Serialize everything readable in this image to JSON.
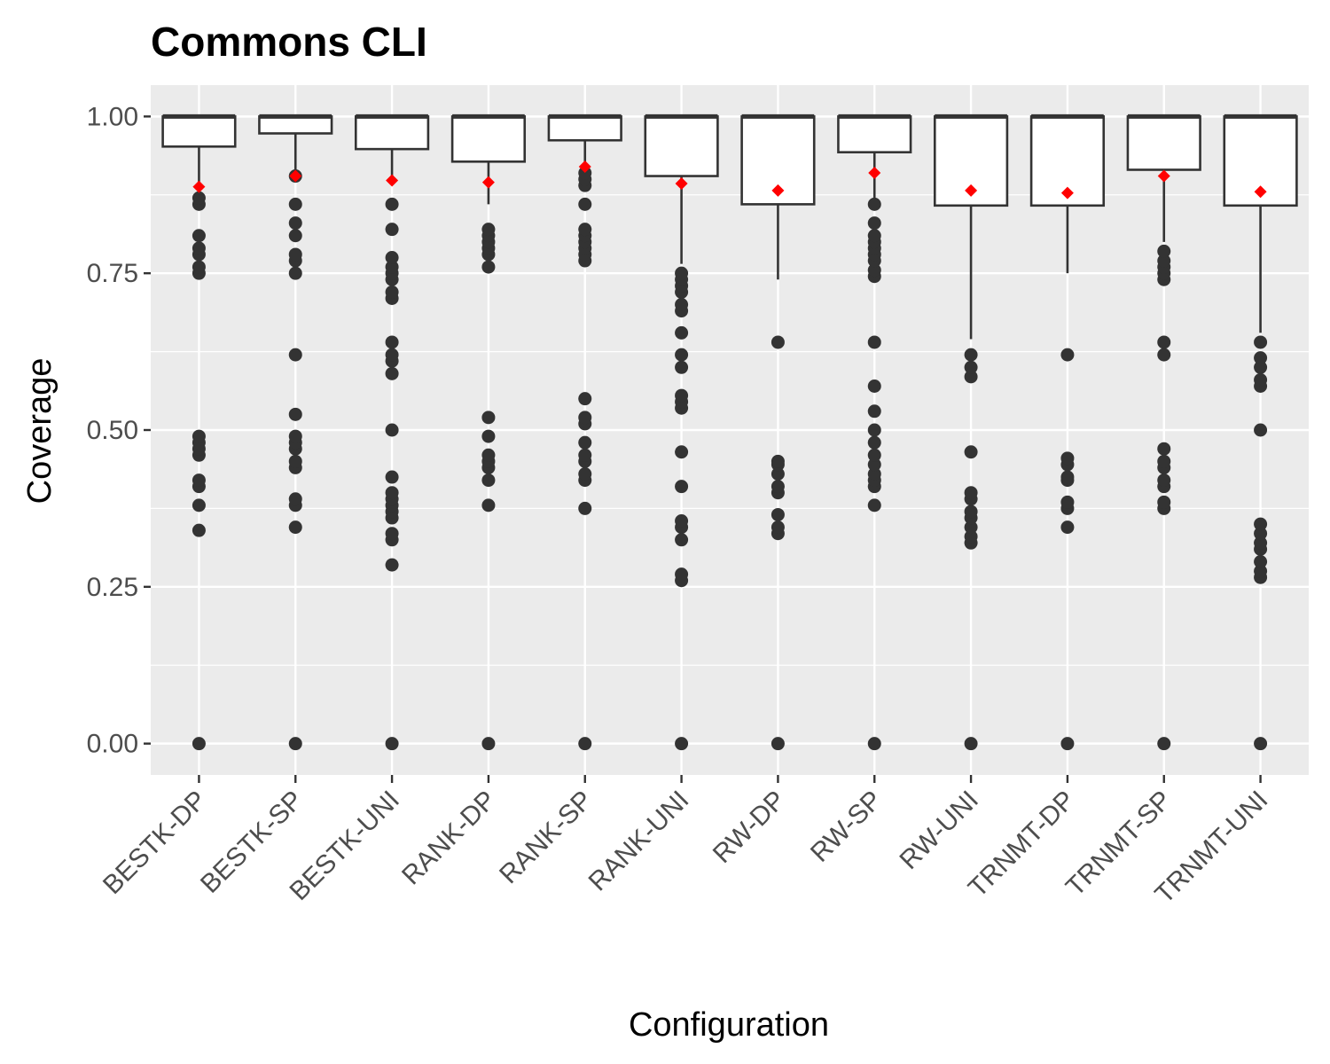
{
  "chart_data": {
    "type": "boxplot",
    "title": "Commons CLI",
    "xlabel": "Configuration",
    "ylabel": "Coverage",
    "ylim": [
      -0.05,
      1.05
    ],
    "yticks": [
      "0.00",
      "0.25",
      "0.50",
      "0.75",
      "1.00"
    ],
    "ytick_values": [
      0,
      0.25,
      0.5,
      0.75,
      1.0
    ],
    "grid": true,
    "legend": "none",
    "colors": {
      "panel": "#ebebeb",
      "grid": "#ffffff",
      "box": "#333333",
      "mean": "#ff0000",
      "tick_text": "#4d4d4d"
    },
    "categories": [
      "BESTK-DP",
      "BESTK-SP",
      "BESTK-UNI",
      "RANK-DP",
      "RANK-SP",
      "RANK-UNI",
      "RW-DP",
      "RW-SP",
      "RW-UNI",
      "TRNMT-DP",
      "TRNMT-SP",
      "TRNMT-UNI"
    ],
    "boxes": [
      {
        "q1": 0.952,
        "median": 1.0,
        "q3": 1.0,
        "whisker_low": 0.888,
        "whisker_high": 1.0,
        "mean": 0.888,
        "outliers": [
          0.0,
          0.34,
          0.38,
          0.41,
          0.42,
          0.46,
          0.47,
          0.48,
          0.49,
          0.75,
          0.76,
          0.78,
          0.79,
          0.81,
          0.86,
          0.87
        ]
      },
      {
        "q1": 0.973,
        "median": 1.0,
        "q3": 1.0,
        "whisker_low": 0.905,
        "whisker_high": 1.0,
        "mean": 0.905,
        "outliers": [
          0.0,
          0.345,
          0.38,
          0.39,
          0.44,
          0.45,
          0.47,
          0.48,
          0.49,
          0.525,
          0.62,
          0.75,
          0.77,
          0.78,
          0.81,
          0.83,
          0.86,
          0.905
        ]
      },
      {
        "q1": 0.948,
        "median": 1.0,
        "q3": 1.0,
        "whisker_low": 0.898,
        "whisker_high": 1.0,
        "mean": 0.898,
        "outliers": [
          0.0,
          0.285,
          0.325,
          0.335,
          0.36,
          0.37,
          0.38,
          0.39,
          0.4,
          0.425,
          0.5,
          0.59,
          0.61,
          0.62,
          0.64,
          0.71,
          0.72,
          0.74,
          0.75,
          0.76,
          0.775,
          0.82,
          0.86
        ]
      },
      {
        "q1": 0.928,
        "median": 1.0,
        "q3": 1.0,
        "whisker_low": 0.86,
        "whisker_high": 1.0,
        "mean": 0.895,
        "outliers": [
          0.0,
          0.38,
          0.42,
          0.44,
          0.45,
          0.46,
          0.49,
          0.52,
          0.76,
          0.78,
          0.79,
          0.8,
          0.81,
          0.82
        ]
      },
      {
        "q1": 0.962,
        "median": 1.0,
        "q3": 1.0,
        "whisker_low": 0.91,
        "whisker_high": 1.0,
        "mean": 0.92,
        "outliers": [
          0.0,
          0.375,
          0.42,
          0.43,
          0.45,
          0.46,
          0.48,
          0.51,
          0.52,
          0.55,
          0.77,
          0.78,
          0.79,
          0.8,
          0.81,
          0.82,
          0.86,
          0.89,
          0.9,
          0.91
        ]
      },
      {
        "q1": 0.905,
        "median": 1.0,
        "q3": 1.0,
        "whisker_low": 0.765,
        "whisker_high": 1.0,
        "mean": 0.893,
        "outliers": [
          0.0,
          0.26,
          0.27,
          0.325,
          0.345,
          0.355,
          0.41,
          0.465,
          0.535,
          0.545,
          0.555,
          0.6,
          0.62,
          0.655,
          0.69,
          0.7,
          0.72,
          0.73,
          0.74,
          0.75
        ]
      },
      {
        "q1": 0.86,
        "median": 1.0,
        "q3": 1.0,
        "whisker_low": 0.74,
        "whisker_high": 1.0,
        "mean": 0.882,
        "outliers": [
          0.0,
          0.335,
          0.345,
          0.365,
          0.4,
          0.41,
          0.43,
          0.445,
          0.45,
          0.64
        ]
      },
      {
        "q1": 0.943,
        "median": 1.0,
        "q3": 1.0,
        "whisker_low": 0.86,
        "whisker_high": 1.0,
        "mean": 0.91,
        "outliers": [
          0.0,
          0.38,
          0.41,
          0.42,
          0.43,
          0.445,
          0.46,
          0.48,
          0.5,
          0.53,
          0.57,
          0.64,
          0.745,
          0.755,
          0.77,
          0.78,
          0.79,
          0.8,
          0.81,
          0.83,
          0.86
        ]
      },
      {
        "q1": 0.858,
        "median": 1.0,
        "q3": 1.0,
        "whisker_low": 0.645,
        "whisker_high": 1.0,
        "mean": 0.882,
        "outliers": [
          0.0,
          0.32,
          0.33,
          0.345,
          0.36,
          0.37,
          0.39,
          0.4,
          0.465,
          0.585,
          0.6,
          0.62
        ]
      },
      {
        "q1": 0.858,
        "median": 1.0,
        "q3": 1.0,
        "whisker_low": 0.75,
        "whisker_high": 1.0,
        "mean": 0.878,
        "outliers": [
          0.0,
          0.345,
          0.375,
          0.385,
          0.42,
          0.425,
          0.445,
          0.455,
          0.62
        ]
      },
      {
        "q1": 0.915,
        "median": 1.0,
        "q3": 1.0,
        "whisker_low": 0.8,
        "whisker_high": 1.0,
        "mean": 0.905,
        "outliers": [
          0.0,
          0.375,
          0.385,
          0.41,
          0.42,
          0.44,
          0.45,
          0.47,
          0.62,
          0.64,
          0.74,
          0.75,
          0.76,
          0.77,
          0.785
        ]
      },
      {
        "q1": 0.858,
        "median": 1.0,
        "q3": 1.0,
        "whisker_low": 0.655,
        "whisker_high": 1.0,
        "mean": 0.88,
        "outliers": [
          0.0,
          0.265,
          0.275,
          0.29,
          0.31,
          0.32,
          0.335,
          0.35,
          0.5,
          0.57,
          0.58,
          0.6,
          0.615,
          0.64
        ]
      }
    ]
  }
}
